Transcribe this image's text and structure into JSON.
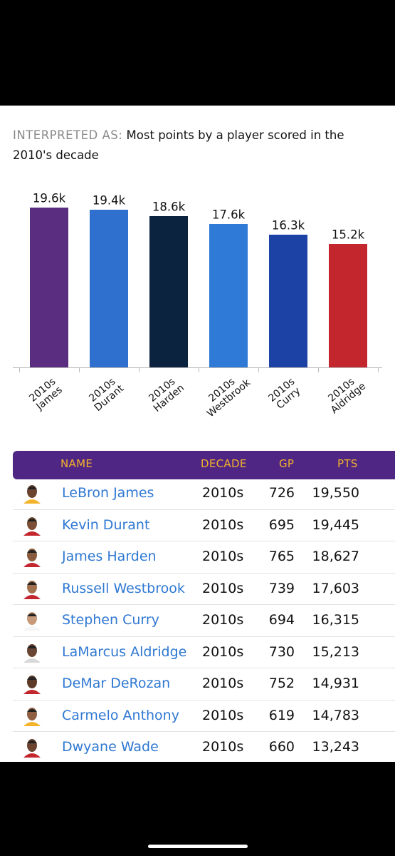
{
  "header": {
    "label": "INTERPRETED AS:",
    "query": "Most points by a player scored in the 2010's decade"
  },
  "chart_data": {
    "type": "bar",
    "categories": [
      "2010s\nJames",
      "2010s\nDurant",
      "2010s\nHarden",
      "2010s\nWestbrook",
      "2010s\nCurry",
      "2010s\nAldridge"
    ],
    "values": [
      19600,
      19400,
      18600,
      17600,
      16300,
      15200
    ],
    "value_labels": [
      "19.6k",
      "19.4k",
      "18.6k",
      "17.6k",
      "16.3k",
      "15.2k"
    ],
    "colors": [
      "#5a2d81",
      "#2f6fce",
      "#0c2340",
      "#2f7ad6",
      "#1d42a6",
      "#c4262e"
    ],
    "ylim": [
      0,
      22000
    ]
  },
  "table": {
    "columns": [
      "NAME",
      "DECADE",
      "GP",
      "PTS"
    ],
    "rows": [
      [
        "LeBron James",
        "2010s",
        "726",
        "19,550"
      ],
      [
        "Kevin Durant",
        "2010s",
        "695",
        "19,445"
      ],
      [
        "James Harden",
        "2010s",
        "765",
        "18,627"
      ],
      [
        "Russell Westbrook",
        "2010s",
        "739",
        "17,603"
      ],
      [
        "Stephen Curry",
        "2010s",
        "694",
        "16,315"
      ],
      [
        "LaMarcus Aldridge",
        "2010s",
        "730",
        "15,213"
      ],
      [
        "DeMar DeRozan",
        "2010s",
        "752",
        "14,931"
      ],
      [
        "Carmelo Anthony",
        "2010s",
        "619",
        "14,783"
      ],
      [
        "Dwyane Wade",
        "2010s",
        "660",
        "13,243"
      ]
    ]
  }
}
